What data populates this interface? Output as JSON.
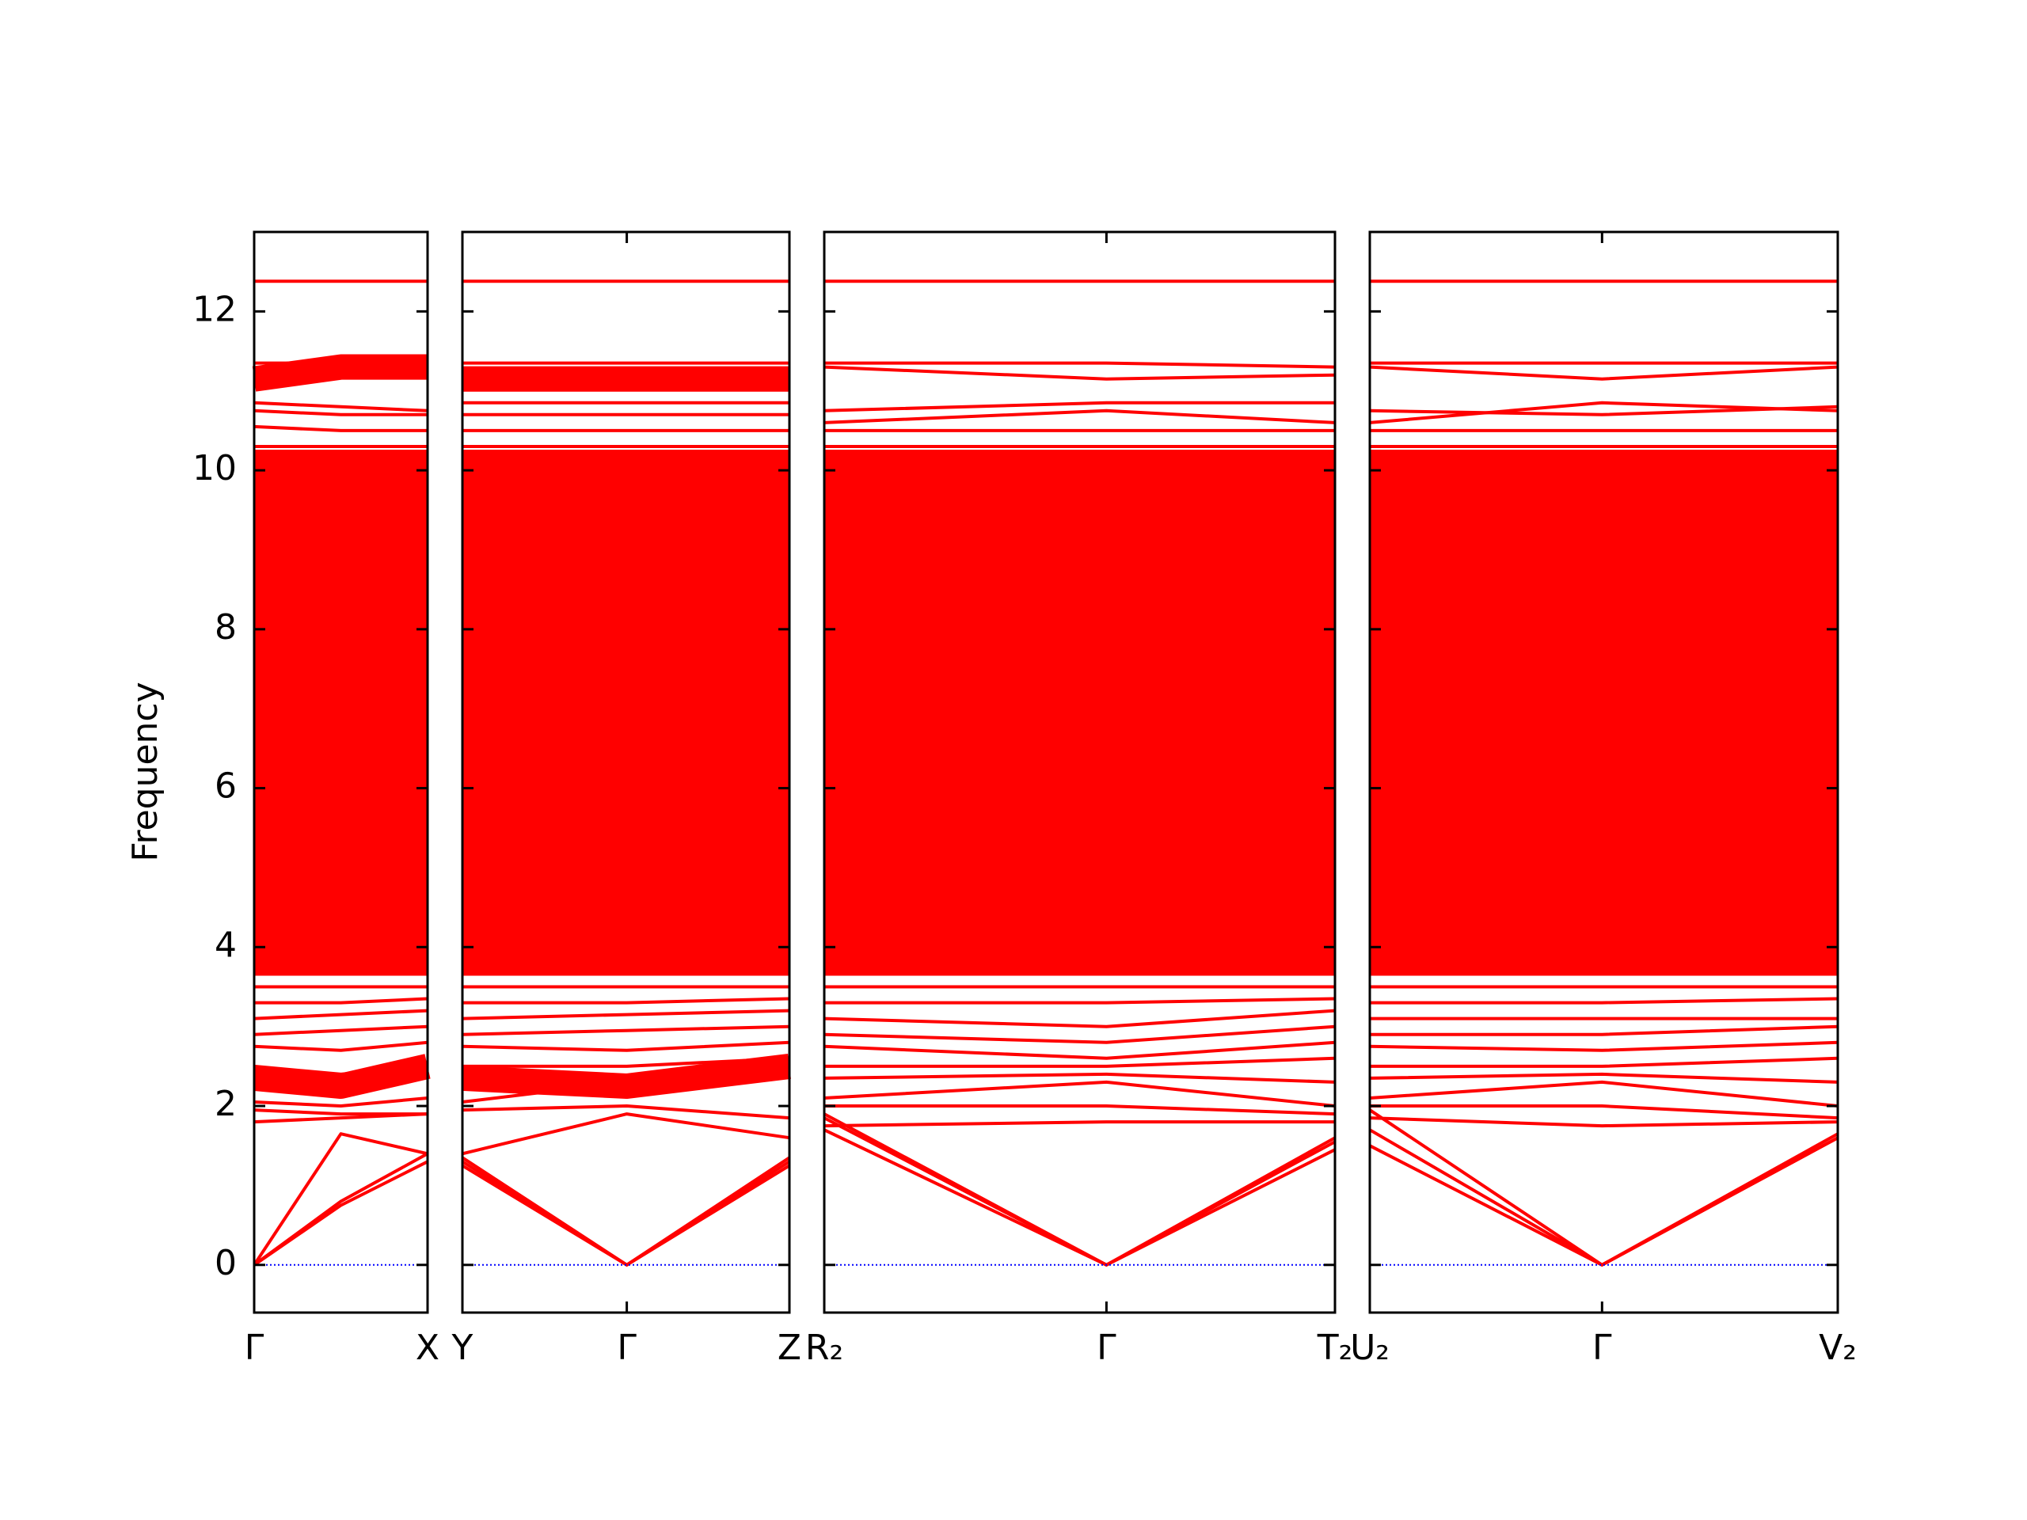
{
  "chart_data": {
    "type": "bandstructure",
    "ylabel": "Frequency",
    "ylim": [
      -0.6,
      13
    ],
    "yticks": [
      0,
      2,
      4,
      6,
      8,
      10,
      12
    ],
    "hline": 0,
    "hline_color": "#0000ff",
    "panels": [
      {
        "xlim": [
          0,
          1
        ],
        "xticks": [
          {
            "value": 0,
            "label": "Γ"
          },
          {
            "value": 1,
            "label": "X"
          }
        ],
        "x": [
          0,
          0.5,
          1
        ],
        "color": "#ff0000",
        "bands": [
          [
            0,
            0.75,
            1.3
          ],
          [
            0,
            0.8,
            1.4
          ],
          [
            0,
            1.65,
            1.4
          ],
          [
            1.8,
            1.85,
            1.9
          ],
          [
            1.95,
            1.9,
            1.9
          ],
          [
            2.05,
            2.0,
            2.1
          ],
          [
            2.35,
            2.25,
            2.5
          ],
          [
            2.5,
            2.4,
            2.5
          ],
          [
            2.75,
            2.7,
            2.8
          ],
          [
            2.9,
            2.95,
            3.0
          ],
          [
            3.1,
            3.15,
            3.2
          ],
          [
            3.3,
            3.3,
            3.35
          ],
          [
            3.5,
            3.5,
            3.5
          ],
          [
            3.8,
            3.8,
            3.8
          ],
          [
            4.1,
            4.1,
            4.1
          ],
          [
            4.4,
            4.4,
            4.4
          ],
          [
            4.7,
            4.7,
            4.7
          ],
          [
            5.0,
            5.0,
            5.0
          ],
          [
            5.3,
            5.3,
            5.3
          ],
          [
            5.6,
            5.6,
            5.6
          ],
          [
            5.9,
            5.9,
            5.9
          ],
          [
            6.2,
            6.2,
            6.2
          ],
          [
            6.5,
            6.5,
            6.5
          ],
          [
            6.8,
            6.8,
            6.8
          ],
          [
            7.1,
            7.1,
            7.1
          ],
          [
            7.4,
            7.4,
            7.4
          ],
          [
            7.7,
            7.7,
            7.7
          ],
          [
            8.0,
            8.0,
            8.0
          ],
          [
            8.3,
            8.3,
            8.3
          ],
          [
            8.6,
            8.6,
            8.6
          ],
          [
            8.9,
            8.9,
            8.9
          ],
          [
            9.2,
            9.2,
            9.2
          ],
          [
            9.5,
            9.5,
            9.5
          ],
          [
            9.8,
            9.8,
            9.8
          ],
          [
            10.1,
            10.1,
            10.1
          ],
          [
            10.3,
            10.3,
            10.3
          ],
          [
            10.55,
            10.5,
            10.5
          ],
          [
            10.75,
            10.7,
            10.7
          ],
          [
            10.85,
            10.8,
            10.75
          ],
          [
            11.15,
            11.3,
            11.3
          ],
          [
            11.35,
            11.35,
            11.35
          ],
          [
            12.38,
            12.38,
            12.38
          ]
        ]
      },
      {
        "xlim": [
          0,
          1.89
        ],
        "xticks": [
          {
            "value": 0,
            "label": "Y"
          },
          {
            "value": 0.95,
            "label": "Γ"
          },
          {
            "value": 1.89,
            "label": "Z"
          }
        ],
        "x": [
          0,
          0.95,
          1.89
        ],
        "color": "#ff0000",
        "bands": [
          [
            1.25,
            0,
            1.3
          ],
          [
            1.3,
            0,
            1.35
          ],
          [
            1.35,
            0,
            1.25
          ],
          [
            1.4,
            1.9,
            1.6
          ],
          [
            1.95,
            2.0,
            1.85
          ],
          [
            2.05,
            2.3,
            2.4
          ],
          [
            2.35,
            2.25,
            2.5
          ],
          [
            2.5,
            2.5,
            2.6
          ],
          [
            2.75,
            2.7,
            2.8
          ],
          [
            2.9,
            2.95,
            3.0
          ],
          [
            3.1,
            3.15,
            3.2
          ],
          [
            3.3,
            3.3,
            3.35
          ],
          [
            3.5,
            3.5,
            3.5
          ],
          [
            3.8,
            3.8,
            3.8
          ],
          [
            4.1,
            4.1,
            4.1
          ],
          [
            4.4,
            4.4,
            4.4
          ],
          [
            4.7,
            4.7,
            4.7
          ],
          [
            5.0,
            5.0,
            5.0
          ],
          [
            5.3,
            5.3,
            5.3
          ],
          [
            5.6,
            5.6,
            5.6
          ],
          [
            5.9,
            5.9,
            5.9
          ],
          [
            6.2,
            6.2,
            6.2
          ],
          [
            6.5,
            6.5,
            6.5
          ],
          [
            6.8,
            6.8,
            6.8
          ],
          [
            7.1,
            7.1,
            7.1
          ],
          [
            7.4,
            7.4,
            7.4
          ],
          [
            7.7,
            7.7,
            7.7
          ],
          [
            8.0,
            8.0,
            8.0
          ],
          [
            8.3,
            8.3,
            8.3
          ],
          [
            8.6,
            8.6,
            8.6
          ],
          [
            8.9,
            8.9,
            8.9
          ],
          [
            9.2,
            9.2,
            9.2
          ],
          [
            9.5,
            9.5,
            9.5
          ],
          [
            9.8,
            9.8,
            9.8
          ],
          [
            10.1,
            10.1,
            10.1
          ],
          [
            10.3,
            10.3,
            10.3
          ],
          [
            10.5,
            10.5,
            10.5
          ],
          [
            10.7,
            10.7,
            10.7
          ],
          [
            10.85,
            10.85,
            10.85
          ],
          [
            11.15,
            11.15,
            11.15
          ],
          [
            11.35,
            11.35,
            11.35
          ],
          [
            12.38,
            12.38,
            12.38
          ]
        ]
      },
      {
        "xlim": [
          0,
          2.95
        ],
        "xticks": [
          {
            "value": 0,
            "label": "R₂"
          },
          {
            "value": 1.63,
            "label": "Γ"
          },
          {
            "value": 2.95,
            "label": "T₂"
          }
        ],
        "x": [
          0,
          1.63,
          2.95
        ],
        "color": "#ff0000",
        "bands": [
          [
            1.7,
            0,
            1.45
          ],
          [
            1.85,
            0,
            1.6
          ],
          [
            1.9,
            0,
            1.55
          ],
          [
            1.75,
            1.8,
            1.8
          ],
          [
            2.0,
            2.0,
            1.9
          ],
          [
            2.1,
            2.3,
            2.0
          ],
          [
            2.35,
            2.4,
            2.3
          ],
          [
            2.5,
            2.5,
            2.6
          ],
          [
            2.75,
            2.6,
            2.8
          ],
          [
            2.9,
            2.8,
            3.0
          ],
          [
            3.1,
            3.0,
            3.2
          ],
          [
            3.3,
            3.3,
            3.35
          ],
          [
            3.5,
            3.5,
            3.5
          ],
          [
            3.8,
            3.8,
            3.8
          ],
          [
            4.1,
            4.1,
            4.1
          ],
          [
            4.4,
            4.4,
            4.4
          ],
          [
            4.7,
            4.7,
            4.7
          ],
          [
            5.0,
            5.0,
            5.0
          ],
          [
            5.3,
            5.3,
            5.3
          ],
          [
            5.6,
            5.6,
            5.6
          ],
          [
            5.9,
            5.9,
            5.9
          ],
          [
            6.2,
            6.2,
            6.2
          ],
          [
            6.5,
            6.5,
            6.5
          ],
          [
            6.8,
            6.8,
            6.8
          ],
          [
            7.1,
            7.1,
            7.1
          ],
          [
            7.4,
            7.4,
            7.4
          ],
          [
            7.7,
            7.7,
            7.7
          ],
          [
            8.0,
            8.0,
            8.0
          ],
          [
            8.3,
            8.3,
            8.3
          ],
          [
            8.6,
            8.6,
            8.6
          ],
          [
            8.9,
            8.9,
            8.9
          ],
          [
            9.2,
            9.2,
            9.2
          ],
          [
            9.5,
            9.5,
            9.5
          ],
          [
            9.8,
            9.8,
            9.8
          ],
          [
            10.1,
            10.1,
            10.1
          ],
          [
            10.3,
            10.3,
            10.3
          ],
          [
            10.5,
            10.5,
            10.5
          ],
          [
            10.6,
            10.75,
            10.6
          ],
          [
            10.75,
            10.85,
            10.85
          ],
          [
            11.3,
            11.15,
            11.2
          ],
          [
            11.35,
            11.35,
            11.3
          ],
          [
            12.38,
            12.38,
            12.38
          ]
        ]
      },
      {
        "xlim": [
          0,
          2.7
        ],
        "xticks": [
          {
            "value": 0,
            "label": "U₂"
          },
          {
            "value": 1.34,
            "label": "Γ"
          },
          {
            "value": 2.7,
            "label": "V₂"
          }
        ],
        "x": [
          0,
          1.34,
          2.7
        ],
        "color": "#ff0000",
        "bands": [
          [
            1.5,
            0,
            1.6
          ],
          [
            1.7,
            0,
            1.65
          ],
          [
            1.95,
            0,
            1.6
          ],
          [
            1.85,
            1.75,
            1.8
          ],
          [
            2.0,
            2.0,
            1.85
          ],
          [
            2.1,
            2.3,
            2.0
          ],
          [
            2.35,
            2.4,
            2.3
          ],
          [
            2.5,
            2.5,
            2.6
          ],
          [
            2.75,
            2.7,
            2.8
          ],
          [
            2.9,
            2.9,
            3.0
          ],
          [
            3.1,
            3.1,
            3.1
          ],
          [
            3.3,
            3.3,
            3.35
          ],
          [
            3.5,
            3.5,
            3.5
          ],
          [
            3.8,
            3.8,
            3.8
          ],
          [
            4.1,
            4.1,
            4.1
          ],
          [
            4.4,
            4.4,
            4.4
          ],
          [
            4.7,
            4.7,
            4.7
          ],
          [
            5.0,
            5.0,
            5.0
          ],
          [
            5.3,
            5.3,
            5.3
          ],
          [
            5.6,
            5.6,
            5.6
          ],
          [
            5.9,
            5.9,
            5.9
          ],
          [
            6.2,
            6.2,
            6.2
          ],
          [
            6.5,
            6.5,
            6.5
          ],
          [
            6.8,
            6.8,
            6.8
          ],
          [
            7.1,
            7.1,
            7.1
          ],
          [
            7.4,
            7.4,
            7.4
          ],
          [
            7.7,
            7.7,
            7.7
          ],
          [
            8.0,
            8.0,
            8.0
          ],
          [
            8.3,
            8.3,
            8.3
          ],
          [
            8.6,
            8.6,
            8.6
          ],
          [
            8.9,
            8.9,
            8.9
          ],
          [
            9.2,
            9.2,
            9.2
          ],
          [
            9.5,
            9.5,
            9.5
          ],
          [
            9.8,
            9.8,
            9.8
          ],
          [
            10.1,
            10.1,
            10.1
          ],
          [
            10.3,
            10.3,
            10.3
          ],
          [
            10.5,
            10.5,
            10.5
          ],
          [
            10.6,
            10.85,
            10.75
          ],
          [
            10.75,
            10.7,
            10.8
          ],
          [
            11.3,
            11.15,
            11.3
          ],
          [
            11.35,
            11.35,
            11.35
          ],
          [
            12.38,
            12.38,
            12.38
          ]
        ]
      }
    ]
  }
}
